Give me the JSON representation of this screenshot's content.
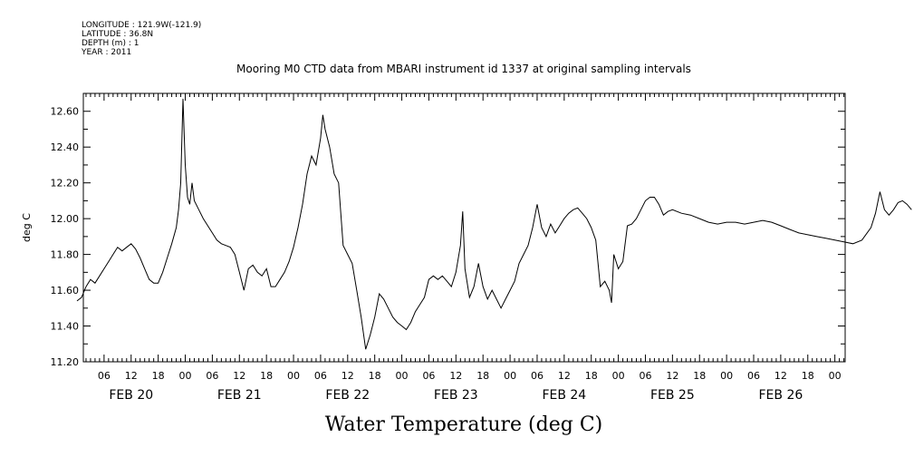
{
  "header": {
    "longitude": "LONGITUDE : 121.9W(-121.9)",
    "latitude": "LATITUDE : 36.8N",
    "depth": "DEPTH (m) : 1",
    "year": "YEAR : 2011"
  },
  "chart_data": {
    "type": "line",
    "title": "Mooring M0 CTD data from MBARI instrument id 1337 at original sampling intervals",
    "xlabel": "Water Temperature (deg C)",
    "ylabel": "deg C",
    "ylim": [
      11.2,
      12.7
    ],
    "y_ticks": [
      "11.20",
      "11.40",
      "11.60",
      "11.80",
      "12.00",
      "12.20",
      "12.40",
      "12.60"
    ],
    "x_start_hour_label": "FEB 20 00:00",
    "x_hour_ticks": [
      "06",
      "12",
      "18",
      "00",
      "06",
      "12",
      "18",
      "00",
      "06",
      "12",
      "18",
      "00",
      "06",
      "12",
      "18",
      "00",
      "06",
      "12",
      "18",
      "00",
      "06",
      "12",
      "18",
      "00",
      "06",
      "12",
      "18",
      "00"
    ],
    "date_labels": [
      "FEB 20",
      "FEB 21",
      "FEB 22",
      "FEB 23",
      "FEB 24",
      "FEB 25",
      "FEB 26"
    ],
    "series": [
      {
        "points": [
          [
            "FEB 20 00:00",
            11.54
          ],
          [
            "FEB 20 01:00",
            11.56
          ],
          [
            "FEB 20 02:00",
            11.62
          ],
          [
            "FEB 20 03:00",
            11.66
          ],
          [
            "FEB 20 04:00",
            11.64
          ],
          [
            "FEB 20 05:00",
            11.68
          ],
          [
            "FEB 20 06:00",
            11.72
          ],
          [
            "FEB 20 07:00",
            11.76
          ],
          [
            "FEB 20 08:00",
            11.8
          ],
          [
            "FEB 20 09:00",
            11.84
          ],
          [
            "FEB 20 10:00",
            11.82
          ],
          [
            "FEB 20 11:00",
            11.84
          ],
          [
            "FEB 20 12:00",
            11.86
          ],
          [
            "FEB 20 13:00",
            11.83
          ],
          [
            "FEB 20 14:00",
            11.78
          ],
          [
            "FEB 20 15:00",
            11.72
          ],
          [
            "FEB 20 16:00",
            11.66
          ],
          [
            "FEB 20 17:00",
            11.64
          ],
          [
            "FEB 20 18:00",
            11.64
          ],
          [
            "FEB 20 19:00",
            11.7
          ],
          [
            "FEB 20 20:00",
            11.78
          ],
          [
            "FEB 20 21:00",
            11.86
          ],
          [
            "FEB 20 22:00",
            11.95
          ],
          [
            "FEB 20 22:30",
            12.05
          ],
          [
            "FEB 20 23:00",
            12.2
          ],
          [
            "FEB 20 23:30",
            12.67
          ],
          [
            "FEB 21 00:00",
            12.3
          ],
          [
            "FEB 21 00:30",
            12.12
          ],
          [
            "FEB 21 01:00",
            12.08
          ],
          [
            "FEB 21 01:30",
            12.2
          ],
          [
            "FEB 21 02:00",
            12.1
          ],
          [
            "FEB 21 03:00",
            12.05
          ],
          [
            "FEB 21 04:00",
            12.0
          ],
          [
            "FEB 21 05:00",
            11.96
          ],
          [
            "FEB 21 06:00",
            11.92
          ],
          [
            "FEB 21 07:00",
            11.88
          ],
          [
            "FEB 21 08:00",
            11.86
          ],
          [
            "FEB 21 09:00",
            11.85
          ],
          [
            "FEB 21 10:00",
            11.84
          ],
          [
            "FEB 21 11:00",
            11.8
          ],
          [
            "FEB 21 12:00",
            11.7
          ],
          [
            "FEB 21 13:00",
            11.6
          ],
          [
            "FEB 21 14:00",
            11.72
          ],
          [
            "FEB 21 15:00",
            11.74
          ],
          [
            "FEB 21 16:00",
            11.7
          ],
          [
            "FEB 21 17:00",
            11.68
          ],
          [
            "FEB 21 18:00",
            11.72
          ],
          [
            "FEB 21 19:00",
            11.62
          ],
          [
            "FEB 21 20:00",
            11.62
          ],
          [
            "FEB 21 21:00",
            11.66
          ],
          [
            "FEB 21 22:00",
            11.7
          ],
          [
            "FEB 21 23:00",
            11.76
          ],
          [
            "FEB 22 00:00",
            11.84
          ],
          [
            "FEB 22 01:00",
            11.95
          ],
          [
            "FEB 22 02:00",
            12.08
          ],
          [
            "FEB 22 03:00",
            12.25
          ],
          [
            "FEB 22 04:00",
            12.35
          ],
          [
            "FEB 22 05:00",
            12.3
          ],
          [
            "FEB 22 06:00",
            12.45
          ],
          [
            "FEB 22 06:30",
            12.58
          ],
          [
            "FEB 22 07:00",
            12.5
          ],
          [
            "FEB 22 08:00",
            12.4
          ],
          [
            "FEB 22 09:00",
            12.25
          ],
          [
            "FEB 22 10:00",
            12.2
          ],
          [
            "FEB 22 11:00",
            11.85
          ],
          [
            "FEB 22 12:00",
            11.8
          ],
          [
            "FEB 22 13:00",
            11.75
          ],
          [
            "FEB 22 14:00",
            11.6
          ],
          [
            "FEB 22 15:00",
            11.45
          ],
          [
            "FEB 22 16:00",
            11.27
          ],
          [
            "FEB 22 17:00",
            11.35
          ],
          [
            "FEB 22 18:00",
            11.45
          ],
          [
            "FEB 22 19:00",
            11.58
          ],
          [
            "FEB 22 20:00",
            11.55
          ],
          [
            "FEB 22 21:00",
            11.5
          ],
          [
            "FEB 22 22:00",
            11.45
          ],
          [
            "FEB 22 23:00",
            11.42
          ],
          [
            "FEB 23 00:00",
            11.4
          ],
          [
            "FEB 23 01:00",
            11.38
          ],
          [
            "FEB 23 02:00",
            11.42
          ],
          [
            "FEB 23 03:00",
            11.48
          ],
          [
            "FEB 23 04:00",
            11.52
          ],
          [
            "FEB 23 05:00",
            11.56
          ],
          [
            "FEB 23 06:00",
            11.66
          ],
          [
            "FEB 23 07:00",
            11.68
          ],
          [
            "FEB 23 08:00",
            11.66
          ],
          [
            "FEB 23 09:00",
            11.68
          ],
          [
            "FEB 23 10:00",
            11.65
          ],
          [
            "FEB 23 11:00",
            11.62
          ],
          [
            "FEB 23 12:00",
            11.7
          ],
          [
            "FEB 23 13:00",
            11.85
          ],
          [
            "FEB 23 13:30",
            12.04
          ],
          [
            "FEB 23 14:00",
            11.72
          ],
          [
            "FEB 23 15:00",
            11.56
          ],
          [
            "FEB 23 16:00",
            11.62
          ],
          [
            "FEB 23 17:00",
            11.75
          ],
          [
            "FEB 23 18:00",
            11.62
          ],
          [
            "FEB 23 19:00",
            11.55
          ],
          [
            "FEB 23 20:00",
            11.6
          ],
          [
            "FEB 23 21:00",
            11.55
          ],
          [
            "FEB 23 22:00",
            11.5
          ],
          [
            "FEB 23 23:00",
            11.55
          ],
          [
            "FEB 24 00:00",
            11.6
          ],
          [
            "FEB 24 01:00",
            11.65
          ],
          [
            "FEB 24 02:00",
            11.75
          ],
          [
            "FEB 24 03:00",
            11.8
          ],
          [
            "FEB 24 04:00",
            11.85
          ],
          [
            "FEB 24 05:00",
            11.95
          ],
          [
            "FEB 24 06:00",
            12.08
          ],
          [
            "FEB 24 07:00",
            11.95
          ],
          [
            "FEB 24 08:00",
            11.9
          ],
          [
            "FEB 24 09:00",
            11.97
          ],
          [
            "FEB 24 10:00",
            11.92
          ],
          [
            "FEB 24 11:00",
            11.96
          ],
          [
            "FEB 24 12:00",
            12.0
          ],
          [
            "FEB 24 13:00",
            12.03
          ],
          [
            "FEB 24 14:00",
            12.05
          ],
          [
            "FEB 24 15:00",
            12.06
          ],
          [
            "FEB 24 16:00",
            12.03
          ],
          [
            "FEB 24 17:00",
            12.0
          ],
          [
            "FEB 24 18:00",
            11.95
          ],
          [
            "FEB 24 19:00",
            11.88
          ],
          [
            "FEB 24 20:00",
            11.62
          ],
          [
            "FEB 24 21:00",
            11.65
          ],
          [
            "FEB 24 22:00",
            11.6
          ],
          [
            "FEB 24 22:30",
            11.53
          ],
          [
            "FEB 24 23:00",
            11.8
          ],
          [
            "FEB 25 00:00",
            11.72
          ],
          [
            "FEB 25 01:00",
            11.76
          ],
          [
            "FEB 25 02:00",
            11.96
          ],
          [
            "FEB 25 03:00",
            11.97
          ],
          [
            "FEB 25 04:00",
            12.0
          ],
          [
            "FEB 25 05:00",
            12.05
          ],
          [
            "FEB 25 06:00",
            12.1
          ],
          [
            "FEB 25 07:00",
            12.12
          ],
          [
            "FEB 25 08:00",
            12.12
          ],
          [
            "FEB 25 09:00",
            12.08
          ],
          [
            "FEB 25 10:00",
            12.02
          ],
          [
            "FEB 25 11:00",
            12.04
          ],
          [
            "FEB 25 12:00",
            12.05
          ],
          [
            "FEB 25 14:00",
            12.03
          ],
          [
            "FEB 25 16:00",
            12.02
          ],
          [
            "FEB 25 18:00",
            12.0
          ],
          [
            "FEB 25 20:00",
            11.98
          ],
          [
            "FEB 25 22:00",
            11.97
          ],
          [
            "FEB 26 00:00",
            11.98
          ],
          [
            "FEB 26 02:00",
            11.98
          ],
          [
            "FEB 26 04:00",
            11.97
          ],
          [
            "FEB 26 06:00",
            11.98
          ],
          [
            "FEB 26 08:00",
            11.99
          ],
          [
            "FEB 26 10:00",
            11.98
          ],
          [
            "FEB 26 12:00",
            11.96
          ],
          [
            "FEB 26 14:00",
            11.94
          ],
          [
            "FEB 26 16:00",
            11.92
          ],
          [
            "FEB 26 18:00",
            11.91
          ],
          [
            "FEB 26 20:00",
            11.9
          ],
          [
            "FEB 26 22:00",
            11.89
          ],
          [
            "FEB 27 00:00",
            11.88
          ],
          [
            "FEB 27 02:00",
            11.87
          ],
          [
            "FEB 27 04:00",
            11.86
          ],
          [
            "FEB 27 06:00",
            11.88
          ],
          [
            "FEB 27 08:00",
            11.95
          ],
          [
            "FEB 27 09:00",
            12.03
          ],
          [
            "FEB 27 10:00",
            12.15
          ],
          [
            "FEB 27 11:00",
            12.05
          ],
          [
            "FEB 27 12:00",
            12.02
          ],
          [
            "FEB 27 13:00",
            12.05
          ],
          [
            "FEB 27 14:00",
            12.09
          ],
          [
            "FEB 27 15:00",
            12.1
          ],
          [
            "FEB 27 16:00",
            12.08
          ],
          [
            "FEB 27 17:00",
            12.05
          ]
        ]
      }
    ]
  }
}
